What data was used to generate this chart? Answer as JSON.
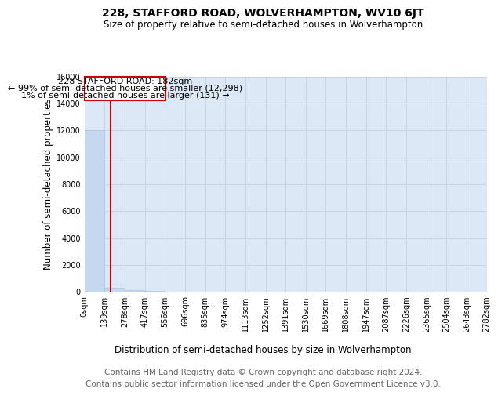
{
  "title": "228, STAFFORD ROAD, WOLVERHAMPTON, WV10 6JT",
  "subtitle": "Size of property relative to semi-detached houses in Wolverhampton",
  "xlabel": "Distribution of semi-detached houses by size in Wolverhampton",
  "ylabel": "Number of semi-detached properties",
  "footer_line1": "Contains HM Land Registry data © Crown copyright and database right 2024.",
  "footer_line2": "Contains public sector information licensed under the Open Government Licence v3.0.",
  "property_label": "228 STAFFORD ROAD: 182sqm",
  "annot_line2": "← 99% of semi-detached houses are smaller (12,298)",
  "annot_line3": "1% of semi-detached houses are larger (131) →",
  "bar_edges": [
    0,
    139,
    278,
    417,
    556,
    696,
    835,
    974,
    1113,
    1252,
    1391,
    1530,
    1669,
    1808,
    1947,
    2087,
    2226,
    2365,
    2504,
    2643,
    2782
  ],
  "bar_heights": [
    12000,
    300,
    120,
    60,
    35,
    20,
    12,
    8,
    6,
    5,
    4,
    3,
    2,
    2,
    1,
    1,
    1,
    1,
    1,
    1
  ],
  "tick_labels": [
    "0sqm",
    "139sqm",
    "278sqm",
    "417sqm",
    "556sqm",
    "696sqm",
    "835sqm",
    "974sqm",
    "1113sqm",
    "1252sqm",
    "1391sqm",
    "1530sqm",
    "1669sqm",
    "1808sqm",
    "1947sqm",
    "2087sqm",
    "2226sqm",
    "2365sqm",
    "2504sqm",
    "2643sqm",
    "2782sqm"
  ],
  "bar_color": "#c5d8ef",
  "bar_edge_color": "#a8c4e0",
  "vline_color": "#cc0000",
  "vline_x": 182,
  "grid_color": "#c8d4e3",
  "plot_bg_color": "#dce8f5",
  "ylim": [
    0,
    16000
  ],
  "yticks": [
    0,
    2000,
    4000,
    6000,
    8000,
    10000,
    12000,
    14000,
    16000
  ],
  "title_fontsize": 10,
  "subtitle_fontsize": 8.5,
  "axis_label_fontsize": 8.5,
  "tick_fontsize": 7,
  "annot_fontsize": 8,
  "footer_fontsize": 7.5
}
